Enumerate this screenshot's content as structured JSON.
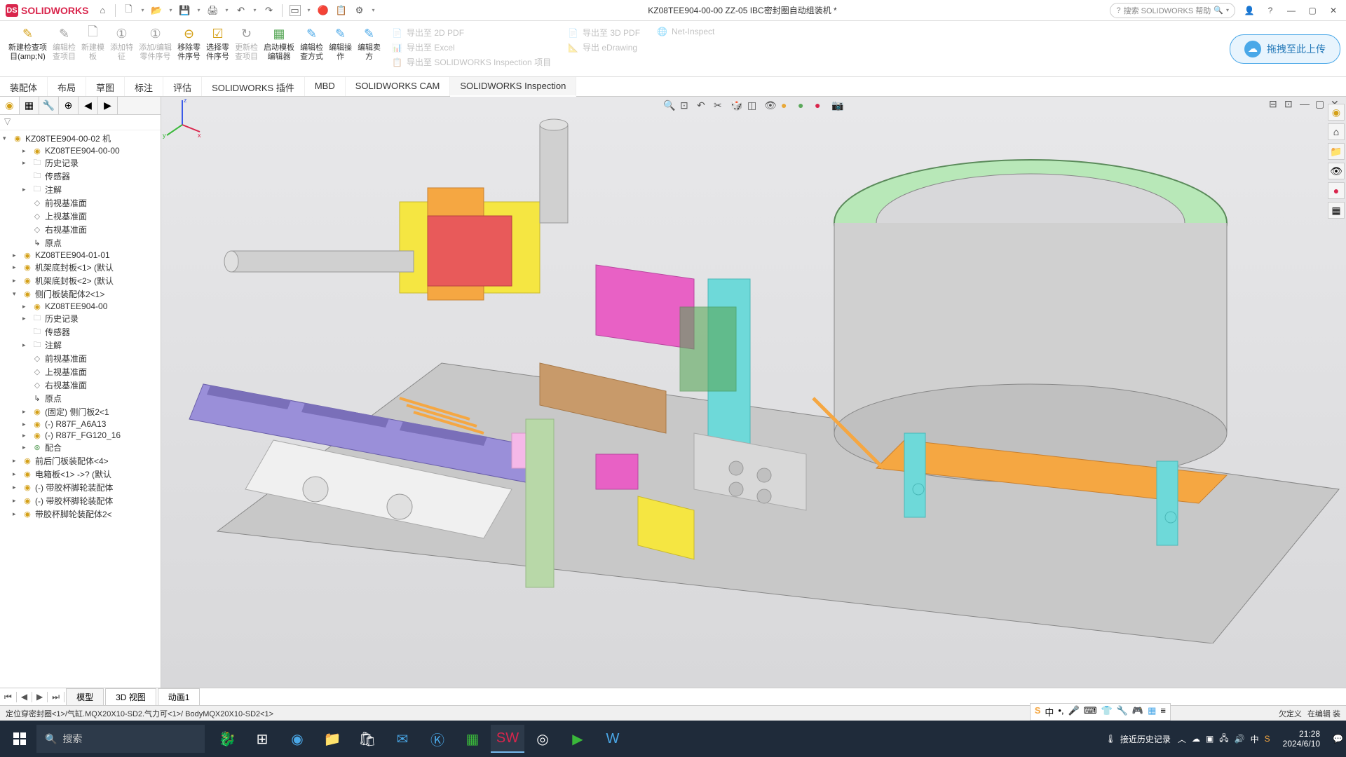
{
  "app": {
    "name": "SOLIDWORKS",
    "document_title": "KZ08TEE904-00-00 ZZ-05 IBC密封圈自动组装机 *",
    "search_placeholder": "搜索 SOLIDWORKS 帮助"
  },
  "ribbon": {
    "new_inspection": "新建检查项\n目(amp;N)",
    "edit_inspection": "编辑检\n查项目",
    "new_template": "新建模\n板",
    "add_feature": "添加特\n征",
    "add_edit_part": "添加/编辑\n零件序号",
    "remove_part": "移除零\n件序号",
    "select_part": "选择零\n件序号",
    "update_inspection": "更新检\n查项目",
    "launch_template": "启动模板\n编辑器",
    "edit_inspection_method": "编辑检\n查方式",
    "edit_operation": "编辑操\n作",
    "edit_vendor": "编辑卖\n方",
    "export_2d_pdf": "导出至 2D PDF",
    "export_excel": "导出至 Excel",
    "export_inspection": "导出至 SOLIDWORKS Inspection 项目",
    "export_3d_pdf": "导出至 3D PDF",
    "export_edrawing": "导出 eDrawing",
    "net_inspect": "Net-Inspect",
    "upload_label": "拖拽至此上传"
  },
  "tabs": {
    "items": [
      "装配体",
      "布局",
      "草图",
      "标注",
      "评估",
      "SOLIDWORKS 插件",
      "MBD",
      "SOLIDWORKS CAM",
      "SOLIDWORKS Inspection"
    ],
    "active_index": 8
  },
  "tree": {
    "root": "KZ08TEE904-00-02 机",
    "items": [
      {
        "icon": "asm",
        "label": "KZ08TEE904-00-00",
        "indent": 1,
        "expand": "▸"
      },
      {
        "icon": "folder",
        "label": "历史记录",
        "indent": 1,
        "expand": "▸"
      },
      {
        "icon": "folder",
        "label": "传感器",
        "indent": 1,
        "expand": ""
      },
      {
        "icon": "folder",
        "label": "注解",
        "indent": 1,
        "expand": "▸"
      },
      {
        "icon": "plane",
        "label": "前视基准面",
        "indent": 1,
        "expand": ""
      },
      {
        "icon": "plane",
        "label": "上视基准面",
        "indent": 1,
        "expand": ""
      },
      {
        "icon": "plane",
        "label": "右视基准面",
        "indent": 1,
        "expand": ""
      },
      {
        "icon": "origin",
        "label": "原点",
        "indent": 1,
        "expand": ""
      },
      {
        "icon": "asm",
        "label": "KZ08TEE904-01-01",
        "indent": 0,
        "expand": "▸"
      },
      {
        "icon": "part",
        "label": "机架底封板<1> (默认",
        "indent": 0,
        "expand": "▸"
      },
      {
        "icon": "part",
        "label": "机架底封板<2> (默认",
        "indent": 0,
        "expand": "▸"
      },
      {
        "icon": "asm",
        "label": "侧门板装配体2<1>",
        "indent": 0,
        "expand": "▾"
      },
      {
        "icon": "asm",
        "label": "KZ08TEE904-00",
        "indent": 1,
        "expand": "▸"
      },
      {
        "icon": "folder",
        "label": "历史记录",
        "indent": 1,
        "expand": "▸"
      },
      {
        "icon": "folder",
        "label": "传感器",
        "indent": 1,
        "expand": ""
      },
      {
        "icon": "folder",
        "label": "注解",
        "indent": 1,
        "expand": "▸"
      },
      {
        "icon": "plane",
        "label": "前视基准面",
        "indent": 1,
        "expand": ""
      },
      {
        "icon": "plane",
        "label": "上视基准面",
        "indent": 1,
        "expand": ""
      },
      {
        "icon": "plane",
        "label": "右视基准面",
        "indent": 1,
        "expand": ""
      },
      {
        "icon": "origin",
        "label": "原点",
        "indent": 1,
        "expand": ""
      },
      {
        "icon": "part",
        "label": "(固定) 侧门板2<1",
        "indent": 1,
        "expand": "▸"
      },
      {
        "icon": "part",
        "label": "(-) R87F_A6A13",
        "indent": 1,
        "expand": "▸"
      },
      {
        "icon": "part",
        "label": "(-) R87F_FG120_16",
        "indent": 1,
        "expand": "▸"
      },
      {
        "icon": "mate",
        "label": "配合",
        "indent": 1,
        "expand": "▸"
      },
      {
        "icon": "asm",
        "label": "前后门板装配体<4>",
        "indent": 0,
        "expand": "▸"
      },
      {
        "icon": "asm",
        "label": "电箱板<1> ->? (默认",
        "indent": 0,
        "expand": "▸"
      },
      {
        "icon": "asm",
        "label": "(-) 带胶杯脚轮装配体",
        "indent": 0,
        "expand": "▸"
      },
      {
        "icon": "asm",
        "label": "(-) 带胶杯脚轮装配体",
        "indent": 0,
        "expand": "▸"
      },
      {
        "icon": "asm",
        "label": "带胶杯脚轮装配体2<",
        "indent": 0,
        "expand": "▸"
      }
    ]
  },
  "bottom_tabs": {
    "items": [
      "模型",
      "3D 视图",
      "动画1"
    ],
    "active_index": 0
  },
  "status": {
    "left": "定位穿密封圈<1>/气缸.MQX20X10-SD2.气力可<1>/ BodyMQX20X10-SD2<1>",
    "right_1": "欠定义",
    "right_2": "在编辑 装"
  },
  "taskbar": {
    "search_placeholder": "搜索",
    "weather": "接近历史记录",
    "time": "21:28",
    "date": "2024/6/10"
  },
  "viewport": {
    "background_top": "#e8e8ea",
    "background_bottom": "#d8d8da",
    "colors": {
      "base_plate": "#c8c8c8",
      "purple": "#9a8fd9",
      "yellow": "#f5e642",
      "orange": "#f5a742",
      "cyan": "#6ed9d9",
      "magenta": "#e861c5",
      "green_light": "#b8e8b8",
      "red": "#e85a5a",
      "steel": "#b8b8b8",
      "pink": "#f5b8e8",
      "green_dark": "#5aa85a",
      "blue_light": "#8ab8e8",
      "brown": "#c89a6a"
    }
  }
}
